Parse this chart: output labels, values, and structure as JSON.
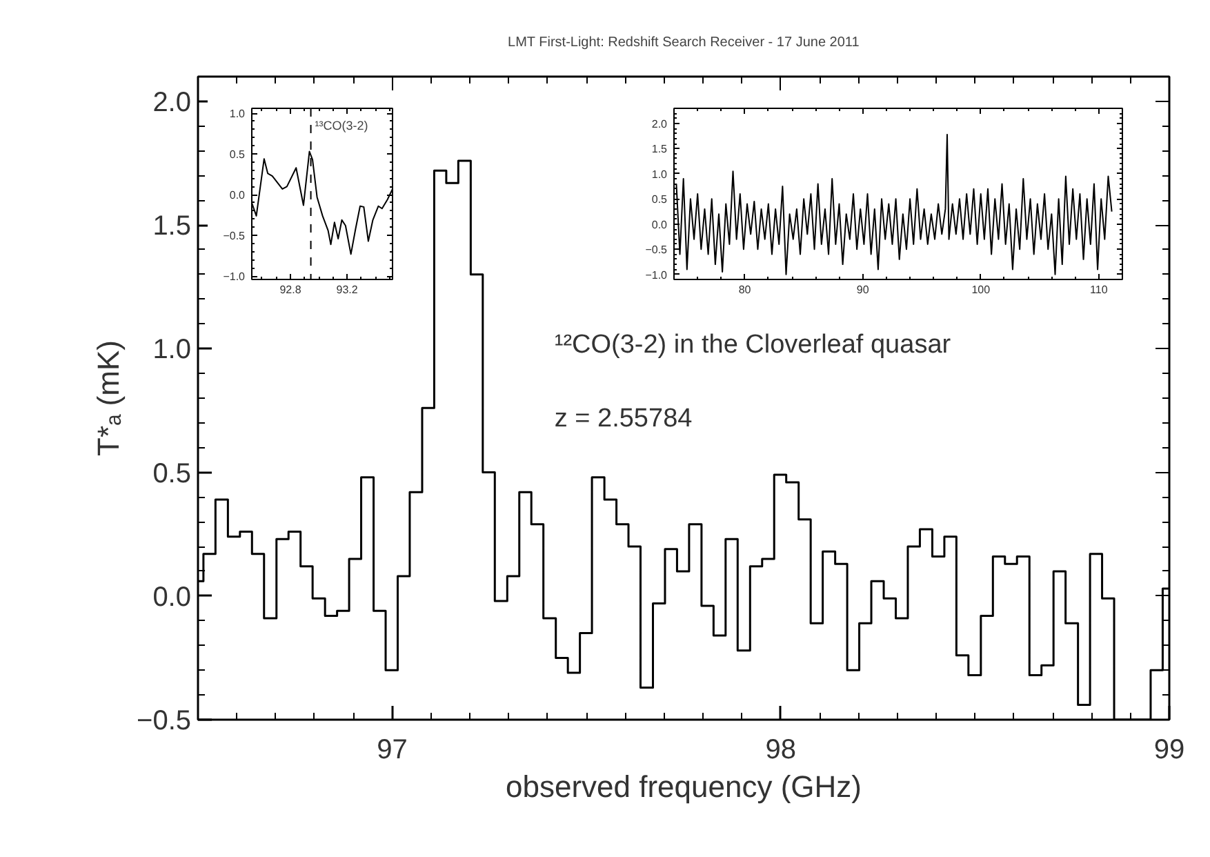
{
  "chart_data": [
    {
      "type": "step",
      "title": "LMT First-Light: Redshift Search Receiver - 17 June 2011",
      "xlabel": "observed frequency (GHz)",
      "ylabel": "T*ₐ (mK)",
      "color": "#000000",
      "grid": false,
      "xlim": [
        96.5,
        99.0
      ],
      "ylim": [
        -0.5,
        2.1
      ],
      "xticks": [
        97,
        98,
        99
      ],
      "yticks": [
        {
          "value": -0.5,
          "label": "−0.5"
        },
        {
          "value": 0.0,
          "label": "0.0"
        },
        {
          "value": 0.5,
          "label": "0.5"
        },
        {
          "value": 1.0,
          "label": "1.0"
        },
        {
          "value": 1.5,
          "label": "1.5"
        },
        {
          "value": 2.0,
          "label": "2.0"
        }
      ],
      "annotations": [
        "¹²CO(3-2) in the Cloverleaf quasar",
        "z = 2.55784"
      ],
      "x": [
        96.5,
        96.514,
        96.545,
        96.577,
        96.608,
        96.639,
        96.67,
        96.702,
        96.733,
        96.764,
        96.795,
        96.827,
        96.858,
        96.889,
        96.92,
        96.952,
        96.983,
        97.014,
        97.045,
        97.077,
        97.108,
        97.139,
        97.17,
        97.202,
        97.233,
        97.264,
        97.296,
        97.327,
        97.358,
        97.389,
        97.421,
        97.452,
        97.483,
        97.514,
        97.546,
        97.577,
        97.608,
        97.639,
        97.671,
        97.702,
        97.733,
        97.764,
        97.796,
        97.827,
        97.858,
        97.889,
        97.921,
        97.952,
        97.983,
        98.014,
        98.046,
        98.077,
        98.108,
        98.14,
        98.171,
        98.202,
        98.233,
        98.265,
        98.296,
        98.327,
        98.358,
        98.39,
        98.421,
        98.452,
        98.483,
        98.515,
        98.546,
        98.577,
        98.608,
        98.64,
        98.671,
        98.702,
        98.733,
        98.765,
        98.796,
        98.827,
        98.858,
        98.89,
        98.921,
        98.952,
        98.983,
        99.0
      ],
      "values": [
        0.06,
        0.17,
        0.39,
        0.24,
        0.26,
        0.17,
        -0.09,
        0.23,
        0.26,
        0.12,
        -0.01,
        -0.08,
        -0.06,
        0.15,
        0.48,
        -0.06,
        -0.3,
        0.08,
        0.42,
        0.76,
        1.72,
        1.67,
        1.76,
        1.3,
        0.5,
        -0.02,
        0.08,
        0.42,
        0.29,
        -0.09,
        -0.25,
        -0.31,
        -0.15,
        0.48,
        0.39,
        0.29,
        0.2,
        -0.37,
        -0.03,
        0.19,
        0.1,
        0.29,
        -0.04,
        -0.16,
        0.23,
        -0.22,
        0.12,
        0.15,
        0.49,
        0.46,
        0.31,
        -0.11,
        0.18,
        0.13,
        -0.3,
        -0.11,
        0.06,
        -0.01,
        -0.09,
        0.2,
        0.27,
        0.16,
        0.24,
        -0.24,
        -0.32,
        -0.08,
        0.16,
        0.13,
        0.16,
        -0.32,
        -0.28,
        0.1,
        -0.11,
        -0.44,
        0.17,
        -0.01,
        -0.5,
        -0.5,
        -0.5,
        -0.3,
        0.03,
        0.03
      ]
    },
    {
      "type": "line",
      "color": "#000000",
      "grid": false,
      "xlim": [
        92.527,
        93.521
      ],
      "ylim": [
        -1.04,
        1.06
      ],
      "xticks": [
        92.8,
        93.2
      ],
      "yticks": [
        {
          "value": -1.0,
          "label": "−1.0"
        },
        {
          "value": -0.5,
          "label": "−0.5"
        },
        {
          "value": 0.0,
          "label": "0.0"
        },
        {
          "value": 0.5,
          "label": "0.5"
        },
        {
          "value": 1.0,
          "label": "1.0"
        }
      ],
      "ref_lines": [
        {
          "axis": "x",
          "value": 92.944,
          "label": "¹³CO(3-2)",
          "line_style": "dashed"
        }
      ],
      "x": [
        92.527,
        92.559,
        92.614,
        92.64,
        92.672,
        92.743,
        92.775,
        92.84,
        92.892,
        92.934,
        92.956,
        92.988,
        93.027,
        93.066,
        93.085,
        93.111,
        93.137,
        93.163,
        93.189,
        93.227,
        93.26,
        93.292,
        93.318,
        93.35,
        93.382,
        93.421,
        93.447,
        93.485,
        93.521
      ],
      "values": [
        -0.1,
        -0.26,
        0.44,
        0.26,
        0.23,
        0.07,
        0.1,
        0.33,
        -0.13,
        0.53,
        0.43,
        -0.03,
        -0.26,
        -0.44,
        -0.61,
        -0.34,
        -0.54,
        -0.31,
        -0.38,
        -0.73,
        -0.42,
        -0.14,
        -0.15,
        -0.57,
        -0.31,
        -0.14,
        -0.17,
        -0.06,
        0.07
      ]
    },
    {
      "type": "line",
      "color": "#000000",
      "grid": false,
      "xlim": [
        74.0,
        112.0
      ],
      "ylim": [
        -1.1,
        2.3
      ],
      "xticks": [
        80,
        90,
        100,
        110
      ],
      "yticks": [
        {
          "value": -1.0,
          "label": "−1.0"
        },
        {
          "value": -0.5,
          "label": "−0.5"
        },
        {
          "value": 0.0,
          "label": "0.0"
        },
        {
          "value": 0.5,
          "label": "0.5"
        },
        {
          "value": 1.0,
          "label": "1.0"
        },
        {
          "value": 1.5,
          "label": "1.5"
        },
        {
          "value": 2.0,
          "label": "2.0"
        }
      ],
      "x": [
        74.2,
        74.5,
        74.8,
        75.1,
        75.4,
        75.7,
        76.0,
        76.3,
        76.6,
        76.9,
        77.2,
        77.5,
        77.8,
        78.1,
        78.4,
        78.7,
        79.0,
        79.3,
        79.6,
        79.9,
        80.2,
        80.5,
        80.8,
        81.1,
        81.4,
        81.7,
        82.0,
        82.3,
        82.6,
        82.9,
        83.2,
        83.5,
        83.8,
        84.1,
        84.4,
        84.7,
        85.0,
        85.3,
        85.6,
        85.9,
        86.2,
        86.5,
        86.8,
        87.1,
        87.4,
        87.7,
        88.0,
        88.3,
        88.6,
        88.9,
        89.2,
        89.5,
        89.8,
        90.1,
        90.4,
        90.7,
        91.0,
        91.3,
        91.6,
        91.9,
        92.2,
        92.5,
        92.8,
        93.1,
        93.4,
        93.7,
        94.0,
        94.3,
        94.6,
        94.9,
        95.2,
        95.5,
        95.8,
        96.1,
        96.4,
        96.7,
        97.0,
        97.15,
        97.3,
        97.6,
        97.9,
        98.2,
        98.5,
        98.8,
        99.1,
        99.4,
        99.7,
        100.0,
        100.3,
        100.6,
        100.9,
        101.2,
        101.5,
        101.8,
        102.1,
        102.4,
        102.7,
        103.0,
        103.3,
        103.6,
        103.9,
        104.2,
        104.5,
        104.8,
        105.1,
        105.4,
        105.7,
        106.0,
        106.3,
        106.6,
        106.9,
        107.2,
        107.5,
        107.8,
        108.1,
        108.4,
        108.7,
        109.0,
        109.3,
        109.6,
        109.9,
        110.2,
        110.5,
        110.8,
        111.1
      ],
      "values": [
        0.8,
        -0.6,
        0.9,
        -0.9,
        0.5,
        -0.3,
        0.6,
        -0.5,
        0.3,
        -0.6,
        0.5,
        -0.8,
        0.2,
        -0.95,
        0.4,
        -0.4,
        1.05,
        -0.3,
        0.6,
        -0.5,
        0.4,
        -0.2,
        0.45,
        -0.5,
        0.3,
        -0.3,
        0.4,
        -0.6,
        0.3,
        -0.4,
        0.75,
        -1.0,
        0.2,
        -0.3,
        0.3,
        -0.6,
        0.5,
        -0.2,
        0.6,
        -0.5,
        0.8,
        -0.4,
        0.3,
        -0.6,
        0.9,
        -0.4,
        0.4,
        -0.8,
        0.2,
        -0.3,
        0.6,
        -0.5,
        0.3,
        -0.4,
        0.6,
        -0.6,
        0.3,
        -0.9,
        0.5,
        -0.3,
        0.4,
        -0.4,
        0.5,
        -0.7,
        0.2,
        -0.5,
        0.5,
        -0.4,
        0.7,
        -0.3,
        0.3,
        -0.4,
        0.2,
        -0.3,
        0.4,
        -0.2,
        0.3,
        1.78,
        -0.3,
        0.4,
        -0.2,
        0.5,
        -0.3,
        0.6,
        -0.2,
        0.7,
        -0.4,
        0.6,
        -0.3,
        0.7,
        -0.6,
        0.5,
        -0.3,
        0.8,
        -0.4,
        0.4,
        -0.9,
        0.3,
        -0.5,
        0.9,
        -0.3,
        0.5,
        -0.6,
        0.4,
        -0.3,
        0.6,
        -0.5,
        0.2,
        -1.0,
        0.5,
        -0.8,
        0.95,
        -0.4,
        0.7,
        -0.3,
        0.6,
        -0.7,
        0.5,
        -0.4,
        0.8,
        -0.9,
        0.5,
        -0.3,
        0.95,
        0.25
      ]
    }
  ]
}
